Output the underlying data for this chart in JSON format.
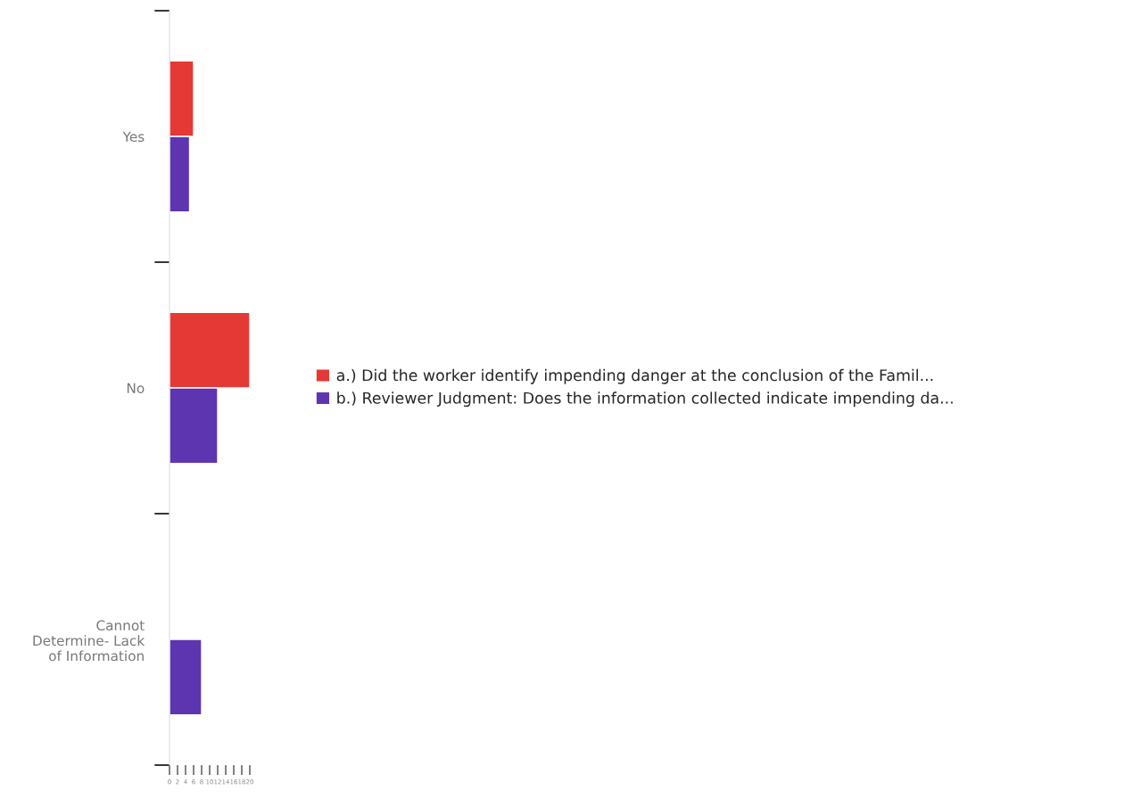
{
  "chart_data": {
    "type": "bar",
    "orientation": "horizontal",
    "categories": [
      "Yes",
      "No",
      "Cannot\nDetermine- Lack\nof Information"
    ],
    "series": [
      {
        "name": "a.) Did the worker identify impending danger at the conclusion of the Famil...",
        "color": "#e53935",
        "values": [
          6,
          20,
          null
        ]
      },
      {
        "name": "b.) Reviewer Judgment: Does the information collected indicate impending da...",
        "color": "#5e35b1",
        "values": [
          5,
          12,
          8
        ]
      }
    ],
    "xlim": [
      0,
      20
    ],
    "xticks": [
      0,
      2,
      4,
      6,
      8,
      10,
      12,
      14,
      16,
      18,
      20
    ],
    "grid": false,
    "legend": "right"
  }
}
